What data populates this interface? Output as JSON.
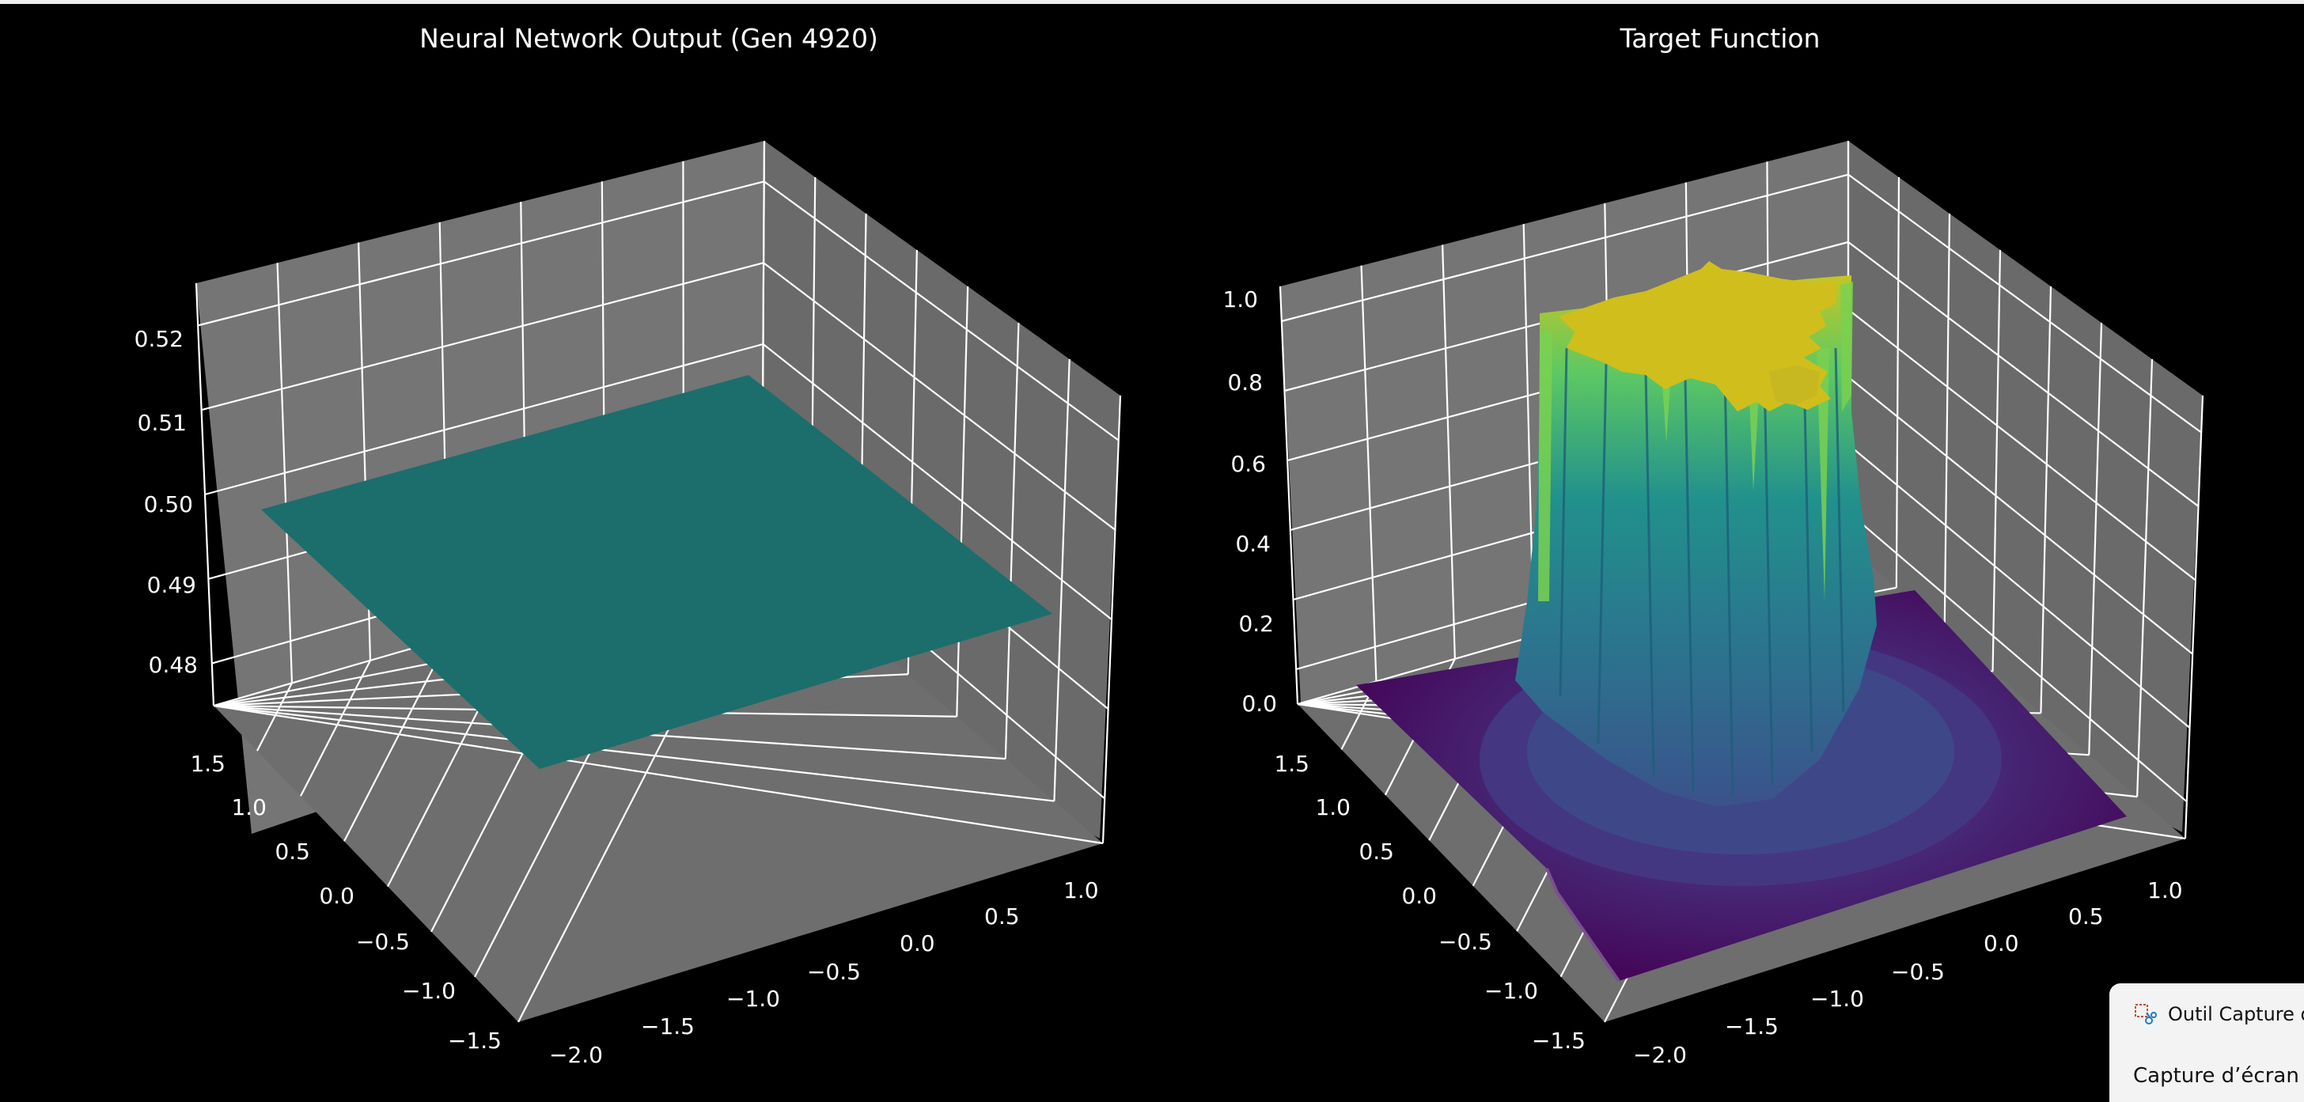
{
  "chart_data": [
    {
      "type": "surface3d",
      "title": "Neural Network Output (Gen 4920)",
      "x_ticks": [
        "−2.0",
        "−1.5",
        "−1.0",
        "−0.5",
        "0.0",
        "0.5",
        "1.0"
      ],
      "y_ticks": [
        "−1.5",
        "−1.0",
        "−0.5",
        "0.0",
        "0.5",
        "1.0",
        "1.5"
      ],
      "z_ticks": [
        "0.48",
        "0.49",
        "0.50",
        "0.51",
        "0.52"
      ],
      "xlim": [
        -2.0,
        1.0
      ],
      "ylim": [
        -1.5,
        1.5
      ],
      "zlim": [
        0.475,
        0.525
      ],
      "surface_value": 0.5,
      "surface_color": "#1b6e6c",
      "grid": true
    },
    {
      "type": "surface3d",
      "title": "Target Function",
      "x_ticks": [
        "−2.0",
        "−1.5",
        "−1.0",
        "−0.5",
        "0.0",
        "0.5",
        "1.0"
      ],
      "y_ticks": [
        "−1.5",
        "−1.0",
        "−0.5",
        "0.0",
        "0.5",
        "1.0",
        "1.5"
      ],
      "z_ticks": [
        "0.0",
        "0.2",
        "0.4",
        "0.6",
        "0.8",
        "1.0"
      ],
      "xlim": [
        -2.0,
        1.0
      ],
      "ylim": [
        -1.5,
        1.5
      ],
      "zlim": [
        0.0,
        1.0
      ],
      "plateau_value": 1.0,
      "base_value": 0.0,
      "colormap": "viridis",
      "grid": true
    }
  ],
  "notification": {
    "app_name": "Outil Capture d",
    "message": "Capture d’écran c"
  },
  "colors": {
    "background": "#000000",
    "pane": "#757575",
    "grid": "#ffffff",
    "viridis_low": "#440154",
    "viridis_mid": "#21918c",
    "viridis_high": "#d4c21a"
  }
}
